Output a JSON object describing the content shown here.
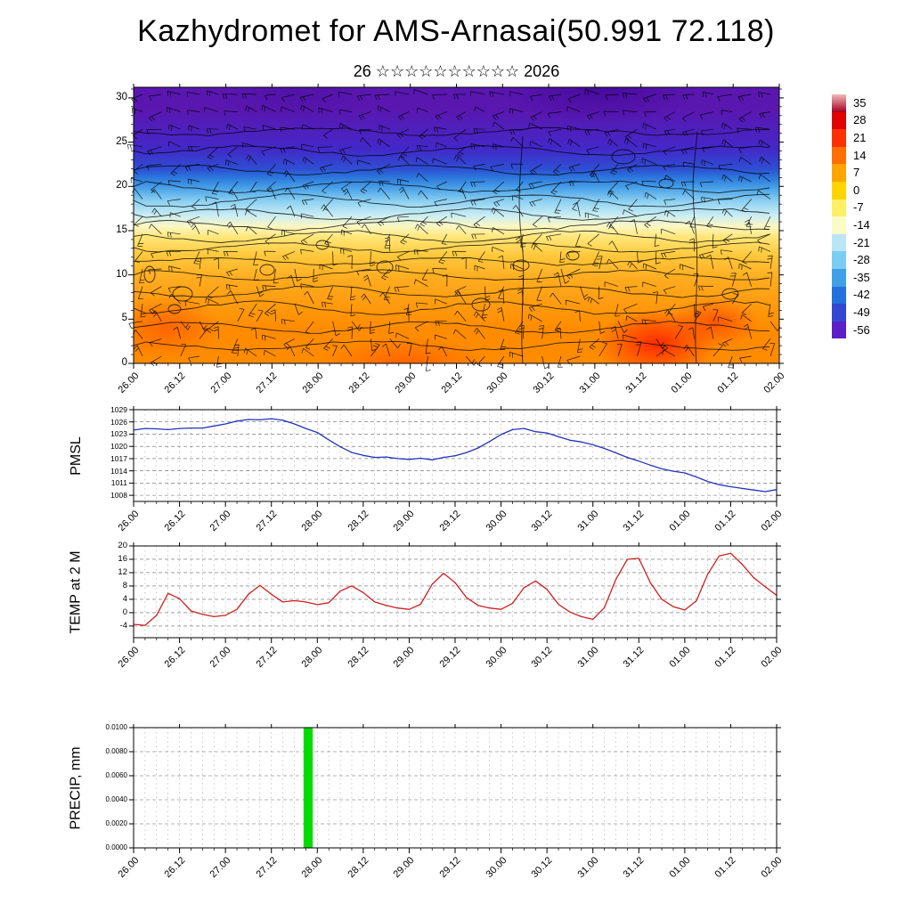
{
  "page": {
    "title": "Kazhydromet for AMS-Arnasai(50.991 72.118)",
    "subtitle": "26 ☆☆☆☆☆☆☆☆☆☆ 2026"
  },
  "time_axis": {
    "labels": [
      "26.00",
      "26.12",
      "27.00",
      "27.12",
      "28.00",
      "28.12",
      "29.00",
      "29.12",
      "30.00",
      "30.12",
      "31.00",
      "31.12",
      "01.00",
      "01.12",
      "02.00"
    ],
    "tick_step_days": 0.5,
    "range_days": [
      0,
      7
    ]
  },
  "colorbar": {
    "title": "temperature-scale",
    "labels": [
      "35",
      "28",
      "21",
      "14",
      "7",
      "0",
      "-7",
      "-14",
      "-21",
      "-28",
      "-35",
      "-42",
      "-49",
      "-56"
    ],
    "colors": [
      "#a50021",
      "#e00000",
      "#ff3000",
      "#ff6f00",
      "#ffa500",
      "#ffd400",
      "#fff066",
      "#fbfbc8",
      "#b9e6f7",
      "#7cccf2",
      "#3fa0e8",
      "#2470dc",
      "#3347d2",
      "#5c1ec9"
    ]
  },
  "chart_data": [
    {
      "type": "heatmap",
      "name": "cross-section",
      "title": "time-height cross-section of temperature with wind barbs and contours",
      "ylabel": "",
      "yticks": [
        0,
        5,
        10,
        15,
        20,
        25,
        30
      ],
      "ylim": [
        0,
        31.2
      ],
      "x_range": "26.00 to 02.00",
      "legend_position": "right-colorbar",
      "bands": [
        {
          "from": 0,
          "to": 8,
          "color": "#ff8c00",
          "temp_c": "7 to 21"
        },
        {
          "from": 8,
          "to": 11,
          "color": "#ffab1f",
          "temp_c": "7"
        },
        {
          "from": 11,
          "to": 13.5,
          "color": "#ffc93d",
          "temp_c": "0 to 7"
        },
        {
          "from": 13.5,
          "to": 15,
          "color": "#ffe678",
          "temp_c": "-7 to 0"
        },
        {
          "from": 15,
          "to": 16,
          "color": "#fbf7c4",
          "temp_c": "-14 to -7"
        },
        {
          "from": 16,
          "to": 17.5,
          "color": "#c9ecf4",
          "temp_c": "-21 to -14"
        },
        {
          "from": 17.5,
          "to": 19,
          "color": "#8fd2f2",
          "temp_c": "-28 to -21"
        },
        {
          "from": 19,
          "to": 20.5,
          "color": "#4ba3e8",
          "temp_c": "-35 to -28"
        },
        {
          "from": 20.5,
          "to": 21.5,
          "color": "#2b77dc",
          "temp_c": "-42 to -35"
        },
        {
          "from": 21.5,
          "to": 22.5,
          "color": "#2e4ed2",
          "temp_c": "-49 to -42"
        },
        {
          "from": 22.5,
          "to": 26,
          "color": "#4328c8",
          "temp_c": "-56 to -49"
        },
        {
          "from": 26,
          "to": 31.2,
          "color": "#5a17b0",
          "temp_c": "below -56"
        }
      ]
    },
    {
      "type": "line",
      "name": "pmsl",
      "ylabel": "PMSL",
      "yticks": [
        1029,
        1026,
        1023,
        1020,
        1017,
        1014,
        1011,
        1008
      ],
      "ylim": [
        1006.5,
        1029
      ],
      "color": "#2233bb",
      "x_start_day": 0,
      "x_step_days": 0.125,
      "values": [
        1024.0,
        1024.4,
        1024.3,
        1024.1,
        1024.4,
        1024.5,
        1024.5,
        1025.0,
        1025.5,
        1026.2,
        1026.6,
        1026.5,
        1026.8,
        1026.4,
        1025.5,
        1024.4,
        1023.4,
        1021.6,
        1019.9,
        1018.5,
        1017.8,
        1017.3,
        1017.4,
        1017.0,
        1016.8,
        1017.1,
        1016.7,
        1017.3,
        1017.7,
        1018.5,
        1019.6,
        1021.2,
        1022.9,
        1024.1,
        1024.4,
        1023.6,
        1023.3,
        1022.4,
        1021.5,
        1021.1,
        1020.4,
        1019.5,
        1018.4,
        1017.3,
        1016.4,
        1015.4,
        1014.5,
        1013.9,
        1013.5,
        1012.5,
        1011.4,
        1010.6,
        1010.1,
        1009.7,
        1009.3,
        1008.9,
        1009.4
      ]
    },
    {
      "type": "line",
      "name": "temp2m",
      "ylabel": "TEMP at 2 M",
      "yticks": [
        20,
        16,
        12,
        8,
        4,
        0,
        -4
      ],
      "ylim": [
        -7.5,
        20
      ],
      "color": "#cc2020",
      "x_start_day": 0,
      "x_step_days": 0.125,
      "values": [
        -3.5,
        -3.8,
        -0.8,
        5.8,
        4.2,
        0.5,
        -0.5,
        -1.2,
        -0.8,
        1.0,
        5.5,
        8.2,
        5.5,
        3.2,
        3.6,
        3.2,
        2.4,
        3.0,
        6.5,
        8.0,
        6.0,
        3.2,
        2.2,
        1.4,
        1.0,
        2.5,
        8.5,
        11.8,
        9.0,
        4.5,
        2.2,
        1.4,
        1.0,
        2.8,
        7.5,
        9.5,
        7.0,
        2.5,
        0.2,
        -1.2,
        -2.0,
        1.5,
        10.0,
        16.0,
        16.3,
        9.0,
        4.0,
        1.8,
        0.8,
        3.5,
        11.5,
        17.0,
        17.8,
        14.5,
        10.5,
        7.8,
        5.2
      ]
    },
    {
      "type": "bar",
      "name": "precip",
      "ylabel": "PRECIP, mm",
      "yticks": [
        "0.0100",
        "0.0080",
        "0.0060",
        "0.0040",
        "0.0020",
        "0.0000"
      ],
      "ytick_values": [
        0.01,
        0.008,
        0.006,
        0.004,
        0.002,
        0
      ],
      "ylim": [
        0,
        0.01
      ],
      "color": "#00dc00",
      "bars": [
        {
          "x_day": 1.85,
          "width_day": 0.1,
          "value": 0.01
        }
      ]
    }
  ]
}
